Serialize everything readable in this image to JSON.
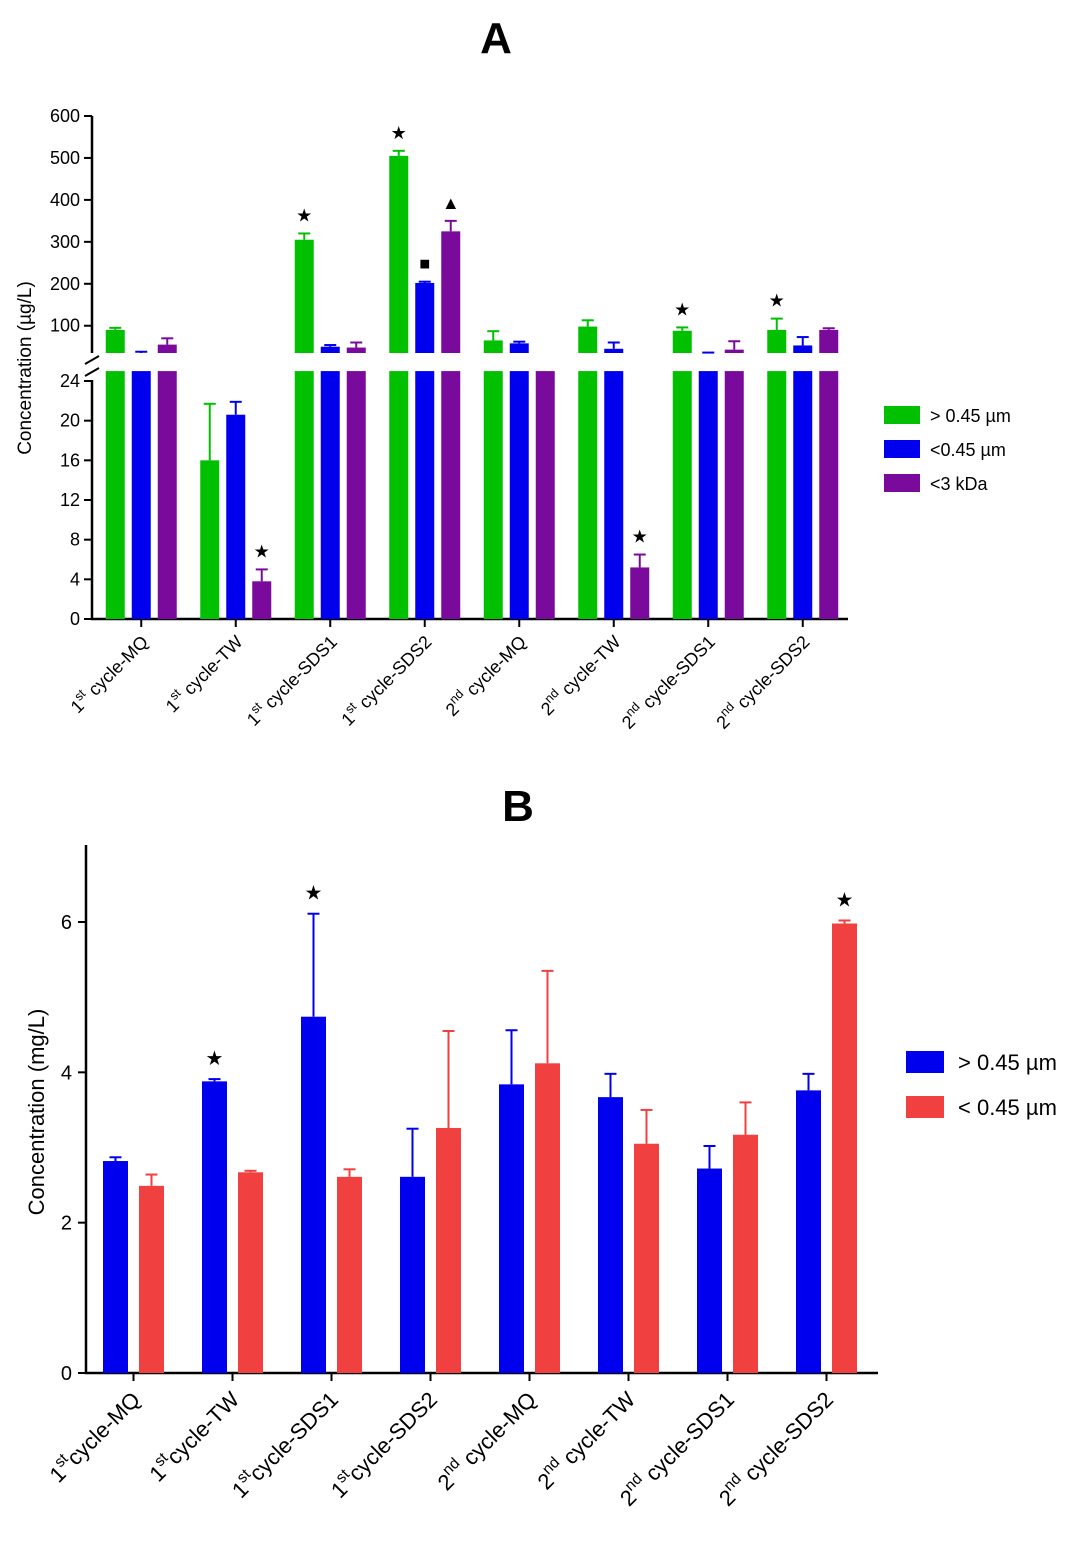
{
  "panels": [
    "A",
    "B"
  ],
  "chart_data": [
    {
      "panel": "A",
      "type": "bar",
      "ylabel": "Concentration (µg/L)",
      "axis_break": true,
      "ylim_lower": [
        0,
        25
      ],
      "yticks_lower": [
        0,
        4,
        8,
        12,
        16,
        20,
        24
      ],
      "ylim_upper": [
        35,
        600
      ],
      "yticks_upper": [
        100,
        200,
        300,
        400,
        500,
        600
      ],
      "categories": [
        {
          "sup": "st",
          "pre": "1",
          "rest": " cycle-MQ"
        },
        {
          "sup": "st",
          "pre": "1",
          "rest": " cycle-TW"
        },
        {
          "sup": "st",
          "pre": "1",
          "rest": " cycle-SDS1"
        },
        {
          "sup": "st",
          "pre": "1",
          "rest": " cycle-SDS2"
        },
        {
          "sup": "nd",
          "pre": "2",
          "rest": " cycle-MQ"
        },
        {
          "sup": "nd",
          "pre": "2",
          "rest": " cycle-TW"
        },
        {
          "sup": "nd",
          "pre": "2",
          "rest": " cycle-SDS1"
        },
        {
          "sup": "nd",
          "pre": "2",
          "rest": " cycle-SDS2"
        }
      ],
      "series": [
        {
          "name": "> 0.45 µm",
          "color": "#00c000",
          "values": [
            90,
            16,
            305,
            505,
            65,
            98,
            88,
            90
          ],
          "errors": [
            5,
            5.7,
            15,
            12,
            22,
            15,
            8,
            27
          ]
        },
        {
          "name": "<0.45 µm",
          "color": "#0000ee",
          "values": [
            28,
            20.6,
            50,
            202,
            58,
            45,
            33,
            53
          ],
          "errors": [
            10,
            1.3,
            4,
            3,
            4,
            15,
            3,
            20
          ]
        },
        {
          "name": "<3 kDa",
          "color": "#7a0a9c",
          "values": [
            55,
            3.8,
            48,
            325,
            33,
            5.2,
            43,
            90
          ],
          "errors": [
            15,
            1.2,
            12,
            25,
            0,
            1.3,
            20,
            4
          ]
        }
      ],
      "markers": [
        {
          "series": 0,
          "category": 2,
          "symbol": "★"
        },
        {
          "series": 0,
          "category": 3,
          "symbol": "★"
        },
        {
          "series": 1,
          "category": 3,
          "symbol": "■"
        },
        {
          "series": 2,
          "category": 3,
          "symbol": "▲"
        },
        {
          "series": 2,
          "category": 1,
          "symbol": "★"
        },
        {
          "series": 2,
          "category": 5,
          "symbol": "★"
        },
        {
          "series": 0,
          "category": 6,
          "symbol": "★"
        },
        {
          "series": 0,
          "category": 7,
          "symbol": "★"
        }
      ],
      "legend_position": "right"
    },
    {
      "panel": "B",
      "type": "bar",
      "ylabel": "Concentration (mg/L)",
      "ylim": [
        0,
        7
      ],
      "yticks": [
        0,
        2,
        4,
        6
      ],
      "categories": [
        {
          "sup": "st",
          "pre": "1",
          "rest": "cycle-MQ"
        },
        {
          "sup": "st",
          "pre": "1",
          "rest": "cycle-TW"
        },
        {
          "sup": "st",
          "pre": "1",
          "rest": "cycle-SDS1"
        },
        {
          "sup": "st",
          "pre": "1",
          "rest": "cycle-SDS2"
        },
        {
          "sup": "nd",
          "pre": "2",
          "rest": " cycle-MQ"
        },
        {
          "sup": "nd",
          "pre": "2",
          "rest": " cycle-TW"
        },
        {
          "sup": "nd",
          "pre": "2",
          "rest": " cycle-SDS1"
        },
        {
          "sup": "nd",
          "pre": "2",
          "rest": " cycle-SDS2"
        }
      ],
      "series": [
        {
          "name": "> 0.45 µm",
          "color": "#0000ee",
          "values": [
            2.82,
            3.88,
            4.74,
            2.61,
            3.84,
            3.67,
            2.72,
            3.76
          ],
          "errors": [
            0.05,
            0.03,
            1.37,
            0.64,
            0.72,
            0.31,
            0.3,
            0.22
          ]
        },
        {
          "name": "< 0.45 µm",
          "color": "#f04040",
          "values": [
            2.49,
            2.67,
            2.61,
            3.26,
            4.12,
            3.05,
            3.17,
            5.98
          ],
          "errors": [
            0.15,
            0.02,
            0.1,
            1.29,
            1.23,
            0.45,
            0.43,
            0.04
          ]
        }
      ],
      "markers": [
        {
          "series": 0,
          "category": 1,
          "symbol": "★"
        },
        {
          "series": 0,
          "category": 2,
          "symbol": "★"
        },
        {
          "series": 1,
          "category": 7,
          "symbol": "★"
        }
      ],
      "legend_position": "right"
    }
  ]
}
